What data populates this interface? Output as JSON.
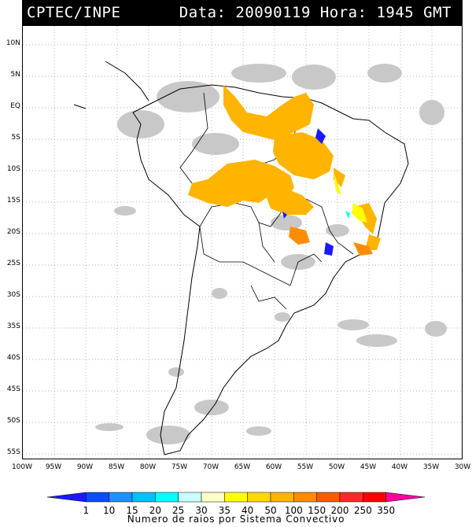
{
  "header": {
    "source": "CPTEC/INPE",
    "datetime": "Data: 20090119 Hora: 1945 GMT"
  },
  "map": {
    "lat_labels": [
      "10N",
      "5N",
      "EQ",
      "5S",
      "10S",
      "15S",
      "20S",
      "25S",
      "30S",
      "35S",
      "40S",
      "45S",
      "50S",
      "55S"
    ],
    "lon_labels": [
      "100W",
      "95W",
      "90W",
      "85W",
      "80W",
      "75W",
      "70W",
      "65W",
      "60W",
      "55W",
      "50W",
      "45W",
      "40W",
      "35W",
      "30W"
    ],
    "lon_range": [
      -100,
      -30
    ],
    "lat_range": [
      -56,
      13
    ],
    "grid": "dotted"
  },
  "legend": {
    "title": "Numero de raios por Sistema Convectivo",
    "values": [
      "1",
      "10",
      "15",
      "20",
      "25",
      "30",
      "35",
      "40",
      "50",
      "100",
      "150",
      "200",
      "250",
      "350"
    ],
    "colors": [
      "#1a1aff",
      "#0a4cff",
      "#1e90ff",
      "#00bfff",
      "#00ffff",
      "#c8ffff",
      "#ffffc8",
      "#ffff00",
      "#ffd700",
      "#ffb400",
      "#ff8c00",
      "#ff5a00",
      "#ff2a2a",
      "#ff0000",
      "#ff00a0"
    ]
  }
}
